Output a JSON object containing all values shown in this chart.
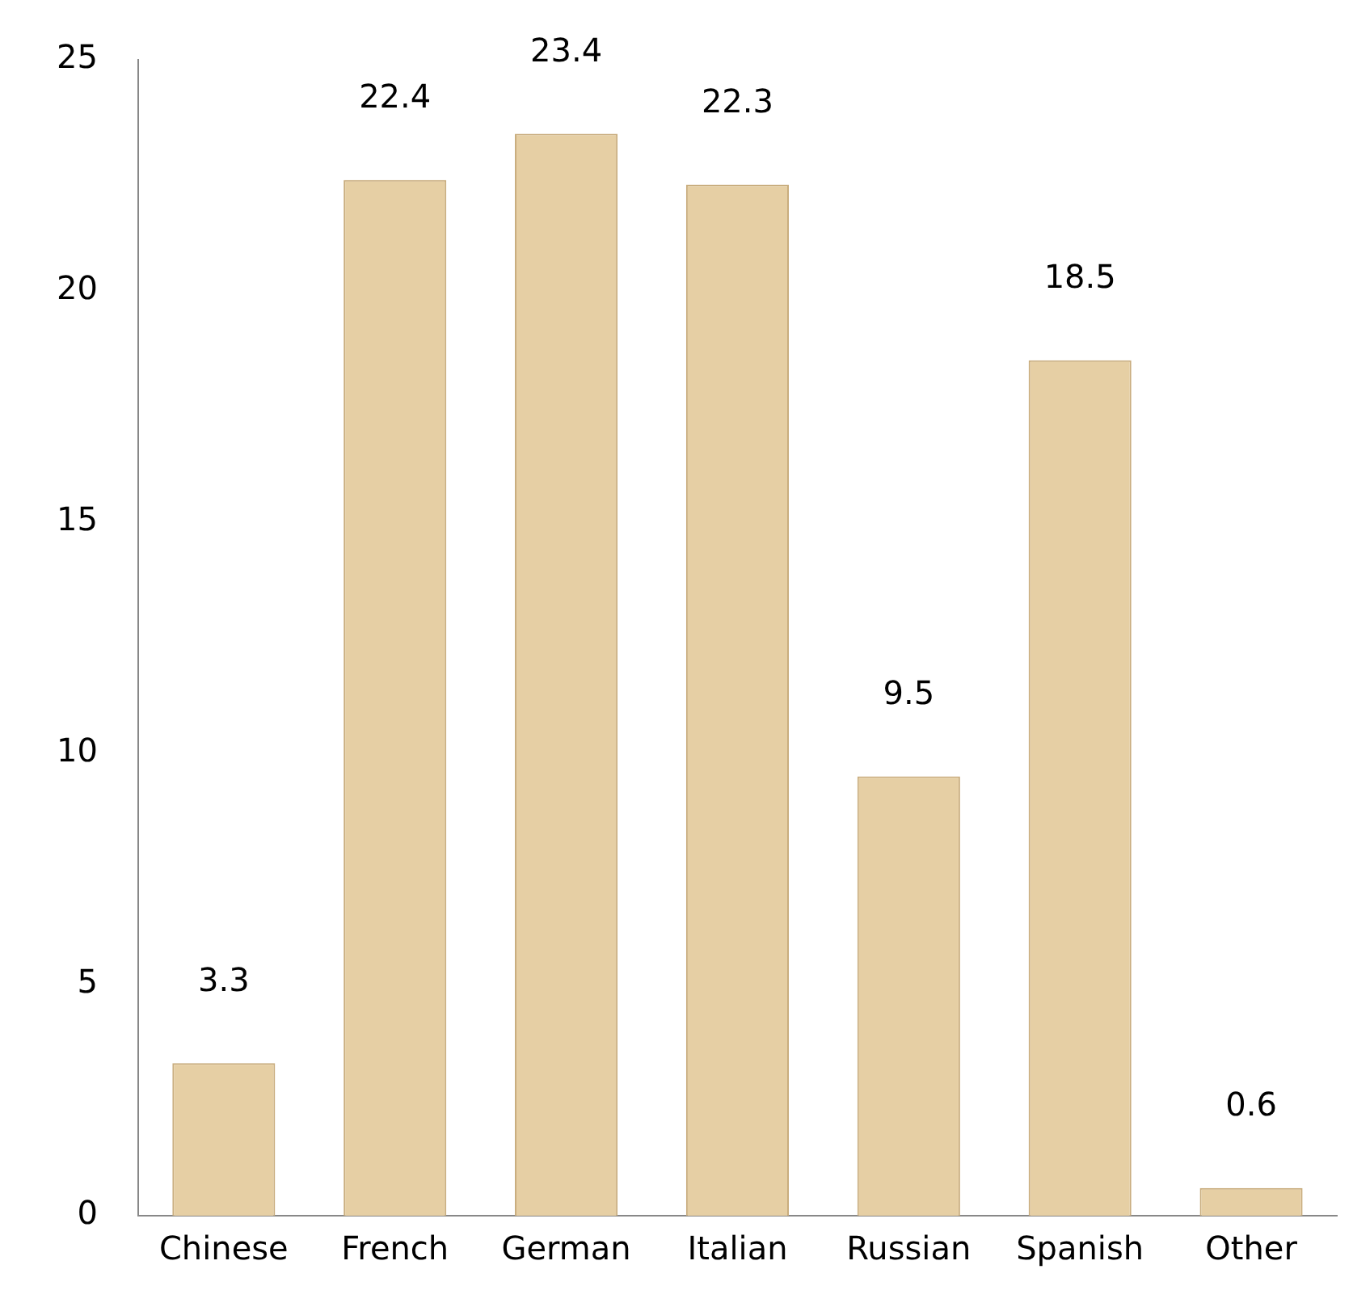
{
  "chart_data": {
    "type": "bar",
    "categories": [
      "Chinese",
      "French",
      "German",
      "Italian",
      "Russian",
      "Spanish",
      "Other"
    ],
    "values": [
      3.3,
      22.4,
      23.4,
      22.3,
      9.5,
      18.5,
      0.6
    ],
    "color": "#e6cfa4",
    "ylim": [
      0,
      25
    ],
    "yticks": [
      0,
      5,
      10,
      15,
      20,
      25
    ],
    "grid": false,
    "legend": false,
    "data_labels": true
  }
}
